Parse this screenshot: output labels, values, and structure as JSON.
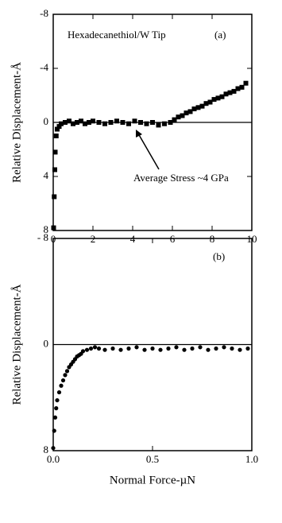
{
  "chart_data": [
    {
      "type": "scatter",
      "marker": "square",
      "color": "#000000",
      "ylabel": "Relative Displacement-Å",
      "annotations": [
        "Hexadecanethiol/W Tip",
        "(a)",
        "Average Stress ~4 GPa"
      ],
      "hline": 0,
      "x": [
        0.02,
        0.05,
        0.08,
        0.1,
        0.15,
        0.2,
        0.3,
        0.4,
        0.6,
        0.8,
        1.0,
        1.2,
        1.4,
        1.6,
        1.8,
        2.0,
        2.3,
        2.6,
        2.9,
        3.2,
        3.5,
        3.8,
        4.1,
        4.4,
        4.7,
        5.0,
        5.3,
        5.6,
        5.9,
        6.1,
        6.3,
        6.5,
        6.7,
        6.9,
        7.1,
        7.3,
        7.5,
        7.7,
        7.9,
        8.1,
        8.3,
        8.5,
        8.7,
        8.9,
        9.1,
        9.3,
        9.5,
        9.7
      ],
      "values": [
        7.8,
        5.5,
        3.5,
        2.2,
        1.0,
        0.5,
        0.3,
        0.1,
        0,
        -0.1,
        0.1,
        0,
        -0.1,
        0.1,
        0,
        -0.1,
        0,
        0.1,
        0,
        -0.1,
        0,
        0.1,
        -0.1,
        0,
        0.1,
        0,
        0.2,
        0.1,
        0,
        -0.2,
        -0.4,
        -0.5,
        -0.7,
        -0.8,
        -1.0,
        -1.1,
        -1.2,
        -1.4,
        -1.5,
        -1.7,
        -1.8,
        -1.9,
        -2.1,
        -2.2,
        -2.3,
        -2.5,
        -2.6,
        -2.9
      ],
      "xlim": [
        0,
        10
      ],
      "xticks": [
        0,
        2,
        4,
        6,
        8,
        10
      ],
      "ylim": [
        -8,
        8
      ],
      "y_inverted": true,
      "yticks": [
        -8,
        -4,
        0,
        4,
        8
      ]
    },
    {
      "type": "scatter",
      "marker": "circle",
      "color": "#000000",
      "ylabel": "Relative Displacement-Å",
      "xlabel": "Normal Force-µN",
      "annotations": [
        "(b)"
      ],
      "hline": 0,
      "x": [
        0.0,
        0.005,
        0.01,
        0.015,
        0.02,
        0.03,
        0.04,
        0.05,
        0.06,
        0.07,
        0.08,
        0.09,
        0.1,
        0.11,
        0.12,
        0.13,
        0.14,
        0.15,
        0.17,
        0.19,
        0.21,
        0.23,
        0.26,
        0.3,
        0.34,
        0.38,
        0.42,
        0.46,
        0.5,
        0.54,
        0.58,
        0.62,
        0.66,
        0.7,
        0.74,
        0.78,
        0.82,
        0.86,
        0.9,
        0.94,
        0.98
      ],
      "values": [
        7.8,
        6.5,
        5.5,
        4.8,
        4.2,
        3.6,
        3.1,
        2.7,
        2.3,
        2.0,
        1.7,
        1.5,
        1.3,
        1.1,
        0.9,
        0.8,
        0.7,
        0.5,
        0.4,
        0.3,
        0.2,
        0.3,
        0.4,
        0.3,
        0.4,
        0.3,
        0.2,
        0.4,
        0.3,
        0.4,
        0.3,
        0.2,
        0.4,
        0.3,
        0.2,
        0.4,
        0.3,
        0.2,
        0.3,
        0.4,
        0.3
      ],
      "xlim": [
        0,
        1
      ],
      "xticks": [
        {
          "value": 0,
          "label": "0.0"
        },
        0.5,
        {
          "value": 1,
          "label": "1.0"
        }
      ],
      "ylim": [
        -8,
        8
      ],
      "y_inverted": true,
      "yticks": [
        {
          "value": -8,
          "label": "- 8"
        },
        0,
        8
      ]
    }
  ]
}
